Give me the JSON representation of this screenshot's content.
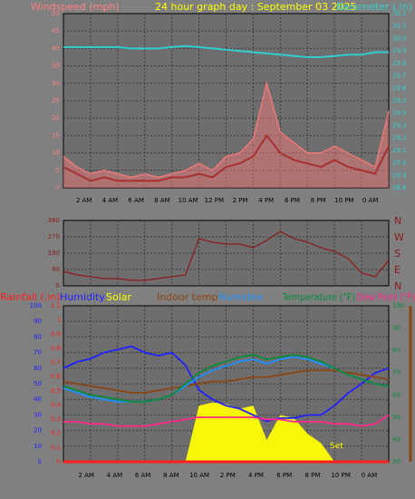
{
  "header": {
    "left_label": "Windspeed (mph)",
    "title": "24 hour graph day : September 03 2025",
    "right_label": "Barometer (.in)"
  },
  "colors": {
    "background": "#808080",
    "plot_bg": "#6e6e6e",
    "grid": "#3a3a3a",
    "wind_gust": "#ff7a7a",
    "wind_avg": "#a83030",
    "barometer": "#33cccc",
    "direction": "#8b1a1a",
    "rainfall": "#ff2020",
    "humidity": "#2020ff",
    "solar": "#ffff00",
    "indoor_temp": "#8b4513",
    "humidex": "#1e90ff",
    "temperature": "#0a8a3a",
    "dew_point": "#ff2a8a"
  },
  "chart_data": [
    {
      "type": "line",
      "name": "wind-barometer",
      "x_tick_labels": [
        "2 AM",
        "4 AM",
        "6 AM",
        "8 AM",
        "10 AM",
        "12 PM",
        "2 PM",
        "4 PM",
        "6 PM",
        "8 PM",
        "10 PM",
        "0 AM"
      ],
      "x": [
        0,
        1,
        2,
        3,
        4,
        5,
        6,
        7,
        8,
        9,
        10,
        11,
        12,
        13,
        14,
        15,
        16,
        17,
        18,
        19,
        20,
        21,
        22,
        23,
        24
      ],
      "left_axis": {
        "label": "Windspeed (mph)",
        "ylim": [
          0,
          50
        ],
        "ticks": [
          0,
          5,
          10,
          15,
          20,
          25,
          30,
          35,
          40,
          45,
          50
        ]
      },
      "right_axis": {
        "label": "Barometer (.in)",
        "ylim": [
          28.8,
          30.2
        ],
        "ticks": [
          28.8,
          28.9,
          29.0,
          29.1,
          29.2,
          29.3,
          29.4,
          29.5,
          29.6,
          29.7,
          29.8,
          29.9,
          30.0,
          30.1,
          30.2
        ]
      },
      "series": [
        {
          "axis": "left",
          "style": "gust",
          "values": [
            9,
            6,
            4,
            5,
            4,
            3,
            4,
            3,
            4,
            5,
            7,
            5,
            9,
            10,
            14,
            30,
            16,
            13,
            10,
            10,
            12,
            10,
            8,
            6,
            22
          ]
        },
        {
          "axis": "left",
          "style": "avg",
          "values": [
            6,
            4,
            2,
            3,
            2,
            2,
            2,
            2,
            3,
            3,
            4,
            3,
            6,
            7,
            9,
            15,
            10,
            8,
            7,
            6,
            8,
            6,
            5,
            4,
            12
          ]
        },
        {
          "axis": "right",
          "style": "barometer",
          "values": [
            29.93,
            29.93,
            29.93,
            29.93,
            29.93,
            29.92,
            29.92,
            29.92,
            29.93,
            29.94,
            29.93,
            29.92,
            29.91,
            29.9,
            29.89,
            29.88,
            29.87,
            29.86,
            29.85,
            29.85,
            29.86,
            29.87,
            29.87,
            29.89,
            29.89
          ]
        }
      ]
    },
    {
      "type": "line",
      "name": "wind-direction",
      "x_tick_labels": [
        "2 AM",
        "4 AM",
        "6 AM",
        "8 AM",
        "10 AM",
        "12 PM",
        "2 PM",
        "4 PM",
        "6 PM",
        "8 PM",
        "10 PM",
        "0 AM"
      ],
      "x": [
        0,
        1,
        2,
        3,
        4,
        5,
        6,
        7,
        8,
        9,
        10,
        11,
        12,
        13,
        14,
        15,
        16,
        17,
        18,
        19,
        20,
        21,
        22,
        23,
        24
      ],
      "ylim": [
        0,
        360
      ],
      "left_ticks": [
        0,
        90,
        180,
        270,
        360
      ],
      "right_ticks": [
        "N",
        "E",
        "S",
        "W",
        "N"
      ],
      "values": [
        80,
        60,
        50,
        40,
        40,
        30,
        30,
        40,
        50,
        60,
        260,
        240,
        230,
        230,
        210,
        250,
        300,
        260,
        240,
        210,
        190,
        150,
        70,
        50,
        140
      ]
    },
    {
      "type": "line",
      "name": "climate",
      "x_tick_labels": [
        "2 AM",
        "4 AM",
        "6 AM",
        "8 AM",
        "10 AM",
        "2 PM",
        "4 PM",
        "6 PM",
        "8 PM",
        "10 PM",
        "0 AM"
      ],
      "x": [
        0,
        1,
        2,
        3,
        4,
        5,
        6,
        7,
        8,
        9,
        10,
        11,
        12,
        13,
        14,
        15,
        16,
        17,
        18,
        19,
        20,
        21,
        22,
        23,
        24
      ],
      "left_axis": {
        "ylim": [
          0,
          100
        ],
        "ticks": [
          0,
          10,
          20,
          30,
          40,
          50,
          60,
          70,
          80,
          90,
          100
        ]
      },
      "rain_axis": {
        "ylim": [
          0,
          1.1
        ],
        "ticks": [
          "0",
          "0.1",
          "0.2",
          "0.3",
          "0.4",
          "0.5",
          "0.6",
          "0.7",
          "0.8",
          "0.9",
          "1",
          "1.1"
        ]
      },
      "right_axis": {
        "ylim": [
          30,
          100
        ],
        "ticks": [
          30,
          40,
          50,
          60,
          70,
          80,
          90,
          100
        ]
      },
      "legend": [
        "Rainfall (.in)",
        "Humidity",
        "Solar",
        "Indoor temp",
        "Humidex",
        "Temperature (°F)",
        "Dew Point (°F)"
      ],
      "annotations": [
        "Set"
      ],
      "series": [
        {
          "name": "Humidity",
          "axis": "left",
          "values": [
            60,
            64,
            66,
            70,
            72,
            74,
            70,
            68,
            70,
            62,
            46,
            40,
            36,
            34,
            30,
            26,
            28,
            28,
            30,
            30,
            36,
            44,
            50,
            57,
            60
          ]
        },
        {
          "name": "Indoor temp",
          "axis": "right",
          "values": [
            66,
            65,
            64,
            63,
            62,
            61,
            61,
            62,
            63,
            64,
            65,
            66,
            66,
            67,
            68,
            68,
            69,
            70,
            71,
            71,
            71,
            70,
            69,
            68,
            67
          ]
        },
        {
          "name": "Humidex",
          "axis": "right",
          "values": [
            63,
            61,
            59,
            58,
            57,
            57,
            57,
            58,
            60,
            64,
            68,
            71,
            73,
            75,
            76,
            74,
            76,
            77,
            76,
            74,
            72,
            69,
            67,
            65,
            64
          ]
        },
        {
          "name": "Temperature (°F)",
          "axis": "right",
          "values": [
            64,
            62,
            60,
            59,
            58,
            57,
            57,
            58,
            60,
            65,
            70,
            73,
            75,
            77,
            78,
            76,
            77,
            78,
            77,
            75,
            72,
            69,
            67,
            65,
            64
          ]
        },
        {
          "name": "Dew Point (°F)",
          "axis": "right",
          "values": [
            48,
            48,
            47,
            47,
            46,
            46,
            46,
            47,
            48,
            49,
            50,
            50,
            50,
            50,
            50,
            49,
            49,
            48,
            48,
            48,
            47,
            47,
            46,
            47,
            51
          ]
        },
        {
          "name": "Solar",
          "axis": "left",
          "values": [
            0,
            0,
            0,
            0,
            0,
            0,
            0,
            0,
            0,
            0,
            36,
            38,
            37,
            34,
            36,
            14,
            30,
            28,
            18,
            12,
            0,
            0,
            0,
            0,
            0
          ]
        },
        {
          "name": "Rainfall (.in)",
          "axis": "rain",
          "values": [
            0,
            0,
            0,
            0,
            0,
            0,
            0,
            0,
            0,
            0,
            0,
            0,
            0,
            0,
            0,
            0,
            0,
            0,
            0,
            0,
            0,
            0,
            0,
            0,
            0
          ]
        }
      ]
    }
  ]
}
